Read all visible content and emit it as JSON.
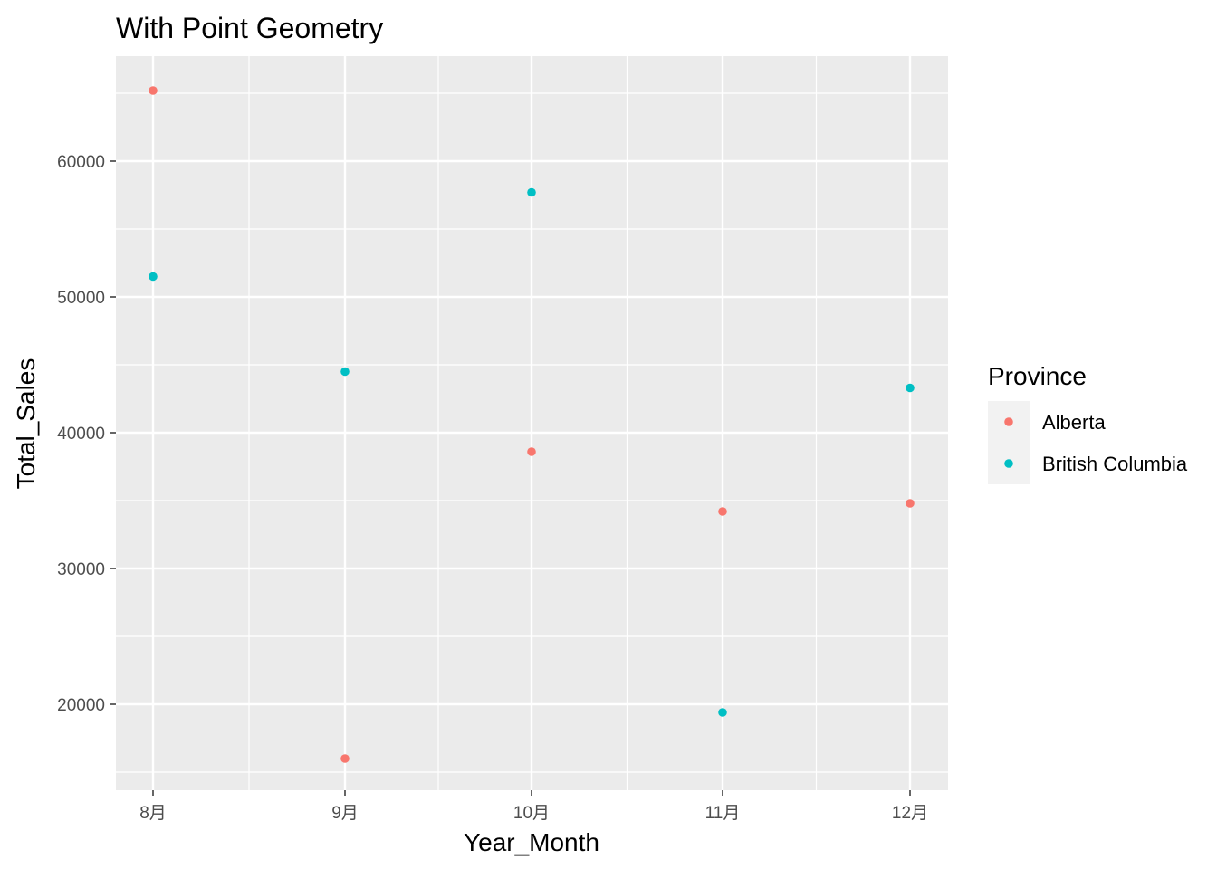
{
  "chart_data": {
    "type": "scatter",
    "title": "With Point Geometry",
    "xlabel": "Year_Month",
    "ylabel": "Total_Sales",
    "x_categories": [
      "8月",
      "9月",
      "10月",
      "11月",
      "12月"
    ],
    "xlim": [
      8,
      12
    ],
    "ylim": [
      14000,
      66000
    ],
    "yticks": [
      20000,
      30000,
      40000,
      50000,
      60000
    ],
    "y_tick_labels": [
      "20000",
      "30000",
      "40000",
      "50000",
      "60000"
    ],
    "grid": true,
    "legend": {
      "title": "Province",
      "position": "right",
      "entries": [
        "Alberta",
        "British Columbia"
      ]
    },
    "series": [
      {
        "name": "Alberta",
        "color": "#F8766D",
        "x": [
          8,
          9,
          10,
          11,
          12
        ],
        "y": [
          65200,
          16000,
          38600,
          34200,
          34800
        ]
      },
      {
        "name": "British Columbia",
        "color": "#00BFC4",
        "x": [
          8,
          9,
          10,
          11,
          12
        ],
        "y": [
          51500,
          44500,
          57700,
          19400,
          43300
        ]
      }
    ],
    "colors": {
      "panel_background": "#EBEBEB",
      "grid": "#FFFFFF",
      "legend_key_background": "#F2F2F2"
    }
  }
}
